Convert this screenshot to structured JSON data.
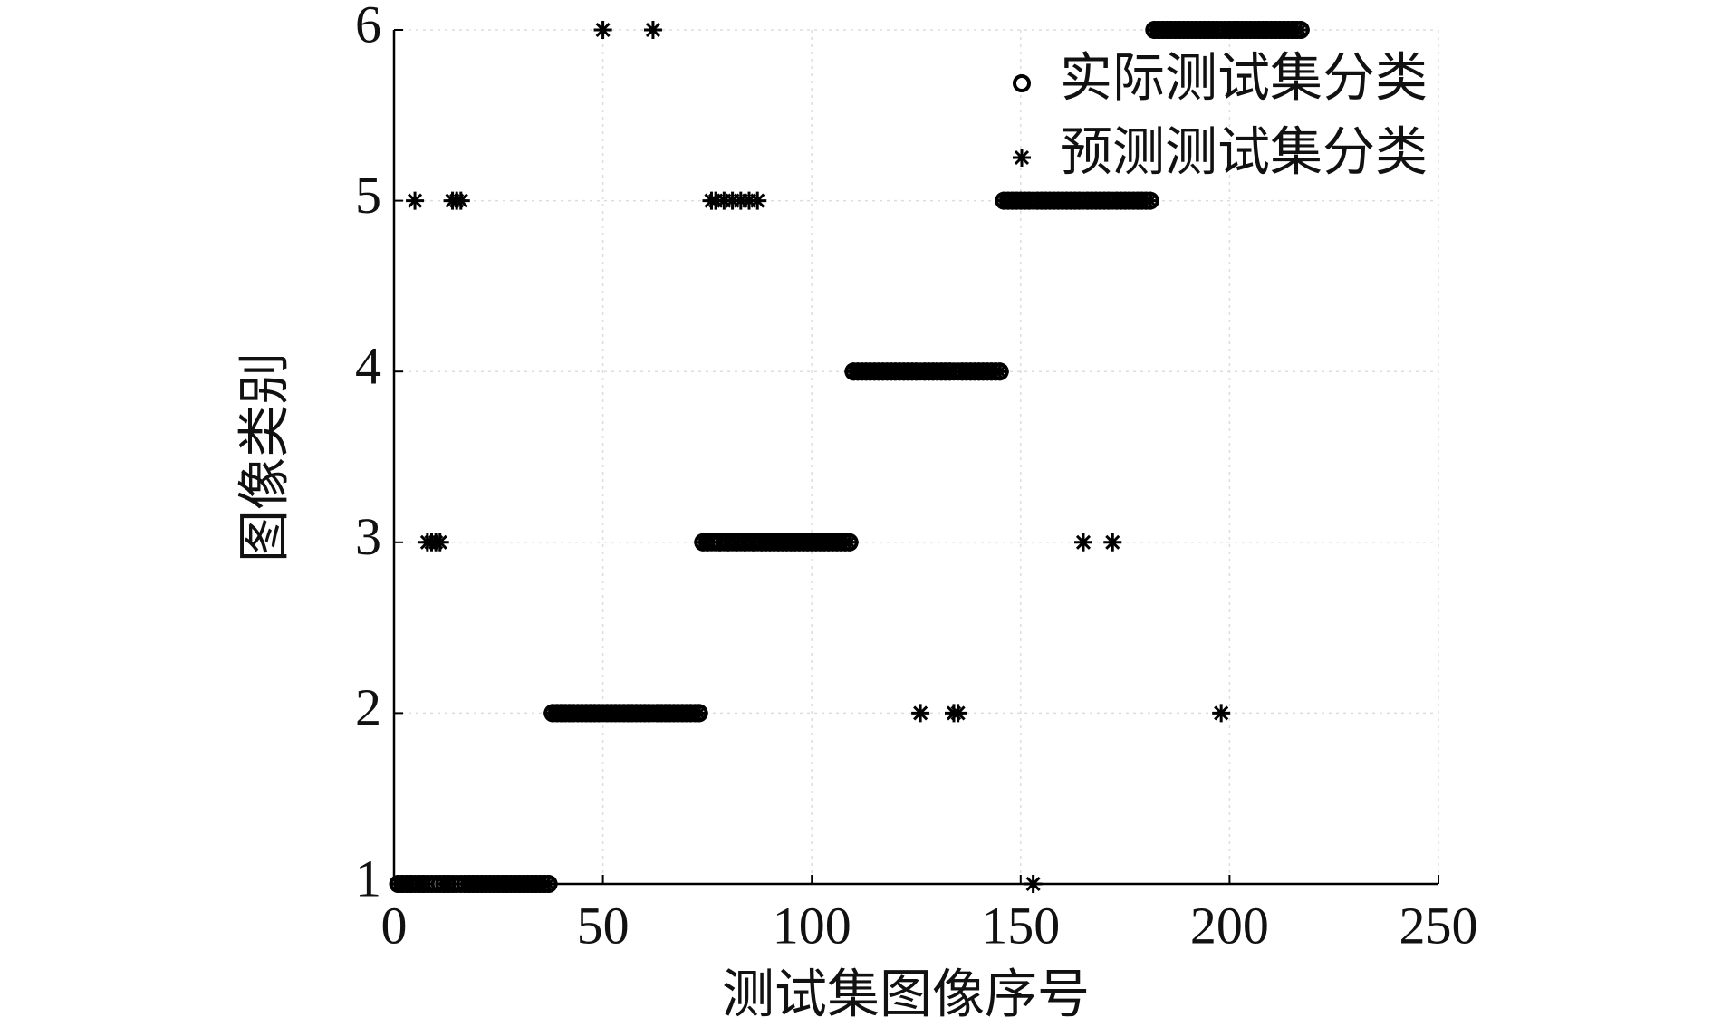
{
  "chart_data": {
    "type": "scatter",
    "x_label": "测试集图像序号",
    "y_label": "图像类别",
    "x": [
      1,
      2,
      3,
      4,
      5,
      6,
      7,
      8,
      9,
      10,
      11,
      12,
      13,
      14,
      15,
      16,
      17,
      18,
      19,
      20,
      21,
      22,
      23,
      24,
      25,
      26,
      27,
      28,
      29,
      30,
      31,
      32,
      33,
      34,
      35,
      36,
      37,
      38,
      39,
      40,
      41,
      42,
      43,
      44,
      45,
      46,
      47,
      48,
      49,
      50,
      51,
      52,
      53,
      54,
      55,
      56,
      57,
      58,
      59,
      60,
      61,
      62,
      63,
      64,
      65,
      66,
      67,
      68,
      69,
      70,
      71,
      72,
      73,
      74,
      75,
      76,
      77,
      78,
      79,
      80,
      81,
      82,
      83,
      84,
      85,
      86,
      87,
      88,
      89,
      90,
      91,
      92,
      93,
      94,
      95,
      96,
      97,
      98,
      99,
      100,
      101,
      102,
      103,
      104,
      105,
      106,
      107,
      108,
      109,
      110,
      111,
      112,
      113,
      114,
      115,
      116,
      117,
      118,
      119,
      120,
      121,
      122,
      123,
      124,
      125,
      126,
      127,
      128,
      129,
      130,
      131,
      132,
      133,
      134,
      135,
      136,
      137,
      138,
      139,
      140,
      141,
      142,
      143,
      144,
      145,
      146,
      147,
      148,
      149,
      150,
      151,
      152,
      153,
      154,
      155,
      156,
      157,
      158,
      159,
      160,
      161,
      162,
      163,
      164,
      165,
      166,
      167,
      168,
      169,
      170,
      171,
      172,
      173,
      174,
      175,
      176,
      177,
      178,
      179,
      180,
      181,
      182,
      183,
      184,
      185,
      186,
      187,
      188,
      189,
      190,
      191,
      192,
      193,
      194,
      195,
      196,
      197,
      198,
      199,
      200,
      201,
      202,
      203,
      204,
      205,
      206,
      207,
      208,
      209,
      210,
      211,
      212,
      213,
      214,
      215,
      216,
      217
    ],
    "series": [
      {
        "name": "实际测试集分类",
        "marker": "circle",
        "color": "#000000",
        "values": [
          1,
          1,
          1,
          1,
          1,
          1,
          1,
          1,
          1,
          1,
          1,
          1,
          1,
          1,
          1,
          1,
          1,
          1,
          1,
          1,
          1,
          1,
          1,
          1,
          1,
          1,
          1,
          1,
          1,
          1,
          1,
          1,
          1,
          1,
          1,
          1,
          1,
          2,
          2,
          2,
          2,
          2,
          2,
          2,
          2,
          2,
          2,
          2,
          2,
          2,
          2,
          2,
          2,
          2,
          2,
          2,
          2,
          2,
          2,
          2,
          2,
          2,
          2,
          2,
          2,
          2,
          2,
          2,
          2,
          2,
          2,
          2,
          2,
          3,
          3,
          3,
          3,
          3,
          3,
          3,
          3,
          3,
          3,
          3,
          3,
          3,
          3,
          3,
          3,
          3,
          3,
          3,
          3,
          3,
          3,
          3,
          3,
          3,
          3,
          3,
          3,
          3,
          3,
          3,
          3,
          3,
          3,
          3,
          3,
          4,
          4,
          4,
          4,
          4,
          4,
          4,
          4,
          4,
          4,
          4,
          4,
          4,
          4,
          4,
          4,
          4,
          4,
          4,
          4,
          4,
          4,
          4,
          4,
          4,
          4,
          4,
          4,
          4,
          4,
          4,
          4,
          4,
          4,
          4,
          4,
          5,
          5,
          5,
          5,
          5,
          5,
          5,
          5,
          5,
          5,
          5,
          5,
          5,
          5,
          5,
          5,
          5,
          5,
          5,
          5,
          5,
          5,
          5,
          5,
          5,
          5,
          5,
          5,
          5,
          5,
          5,
          5,
          5,
          5,
          5,
          5,
          6,
          6,
          6,
          6,
          6,
          6,
          6,
          6,
          6,
          6,
          6,
          6,
          6,
          6,
          6,
          6,
          6,
          6,
          6,
          6,
          6,
          6,
          6,
          6,
          6,
          6,
          6,
          6,
          6,
          6,
          6,
          6,
          6,
          6,
          6,
          6
        ]
      },
      {
        "name": "预测测试集分类",
        "marker": "star",
        "color": "#000000",
        "values": [
          1,
          1,
          1,
          1,
          5,
          1,
          1,
          3,
          3,
          3,
          3,
          1,
          1,
          5,
          5,
          5,
          1,
          1,
          1,
          1,
          1,
          1,
          1,
          1,
          1,
          1,
          1,
          1,
          1,
          1,
          1,
          1,
          1,
          1,
          1,
          1,
          1,
          2,
          2,
          2,
          2,
          2,
          2,
          2,
          2,
          2,
          2,
          2,
          2,
          6,
          2,
          2,
          2,
          2,
          2,
          2,
          2,
          2,
          2,
          2,
          2,
          6,
          2,
          2,
          2,
          2,
          2,
          2,
          2,
          2,
          2,
          2,
          2,
          3,
          3,
          5,
          5,
          3,
          5,
          3,
          5,
          3,
          5,
          3,
          5,
          3,
          5,
          3,
          3,
          3,
          3,
          3,
          3,
          3,
          3,
          3,
          3,
          3,
          3,
          3,
          3,
          3,
          3,
          3,
          3,
          3,
          3,
          3,
          3,
          4,
          4,
          4,
          4,
          4,
          4,
          4,
          4,
          4,
          4,
          4,
          4,
          4,
          4,
          4,
          4,
          2,
          4,
          4,
          4,
          4,
          4,
          4,
          4,
          2,
          2,
          4,
          4,
          4,
          4,
          4,
          4,
          4,
          4,
          4,
          4,
          5,
          5,
          5,
          5,
          5,
          5,
          5,
          1,
          5,
          5,
          5,
          5,
          5,
          5,
          5,
          5,
          5,
          5,
          5,
          3,
          5,
          5,
          5,
          5,
          5,
          5,
          3,
          5,
          5,
          5,
          5,
          5,
          5,
          5,
          5,
          5,
          6,
          6,
          6,
          6,
          6,
          6,
          6,
          6,
          6,
          6,
          6,
          6,
          6,
          6,
          6,
          6,
          2,
          6,
          6,
          6,
          6,
          6,
          6,
          6,
          6,
          6,
          6,
          6,
          6,
          6,
          6,
          6,
          6,
          6,
          6,
          6
        ]
      }
    ],
    "xlim": [
      0,
      250
    ],
    "xticks": [
      0,
      50,
      100,
      150,
      200,
      250
    ],
    "ylim": [
      1,
      6
    ],
    "yticks": [
      1,
      2,
      3,
      4,
      5,
      6
    ],
    "grid": true,
    "legend": "upper right"
  }
}
